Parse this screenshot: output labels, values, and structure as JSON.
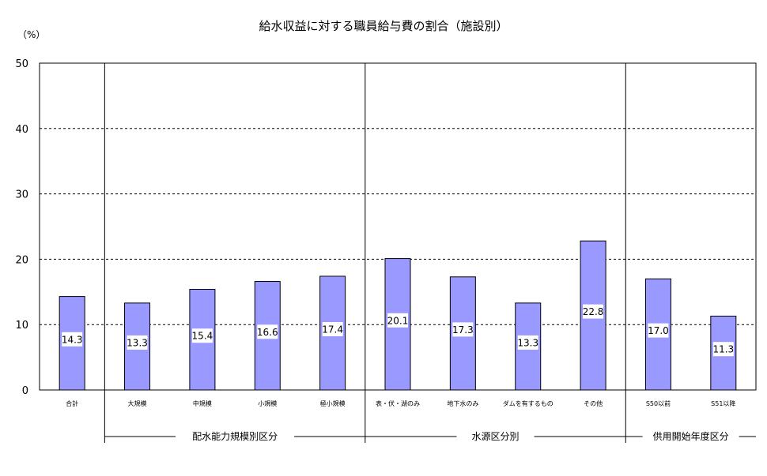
{
  "chart_data": {
    "type": "bar",
    "title": "給水収益に対する職員給与費の割合（施設別）",
    "unit_label": "（%）",
    "ylim": [
      0,
      50
    ],
    "yticks": [
      0,
      10,
      20,
      30,
      40,
      50
    ],
    "grid": "dashed-horizontal",
    "bar_color": "#9999ff",
    "categories": [
      "合計",
      "大規模",
      "中規模",
      "小規模",
      "極小規模",
      "表・伏・湖のみ",
      "地下水のみ",
      "ダムを有するもの",
      "その他",
      "S50以前",
      "S51以降"
    ],
    "values": [
      14.3,
      13.3,
      15.4,
      16.6,
      17.4,
      20.1,
      17.3,
      13.3,
      22.8,
      17.0,
      11.3
    ],
    "data_labels": [
      "14.3",
      "13.3",
      "15.4",
      "16.6",
      "17.4",
      "20.1",
      "17.3",
      "13.3",
      "22.8",
      "17.0",
      "11.3"
    ],
    "groups": [
      {
        "name": "配水能力規模別区分",
        "categories": [
          "大規模",
          "中規模",
          "小規模",
          "極小規模"
        ]
      },
      {
        "name": "水源区分別",
        "categories": [
          "表・伏・湖のみ",
          "地下水のみ",
          "ダムを有するもの",
          "その他"
        ]
      },
      {
        "name": "供用開始年度区分",
        "categories": [
          "S50以前",
          "S51以降"
        ]
      }
    ]
  }
}
